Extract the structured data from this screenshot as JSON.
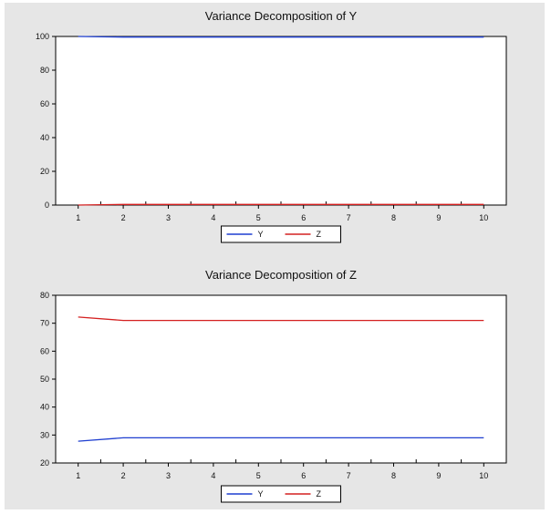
{
  "chart_data": [
    {
      "type": "line",
      "title": "Variance Decomposition of Y",
      "x": [
        1,
        2,
        3,
        4,
        5,
        6,
        7,
        8,
        9,
        10
      ],
      "xlim": [
        0.5,
        10.5
      ],
      "ylim": [
        0,
        100
      ],
      "yticks": [
        0,
        20,
        40,
        60,
        80,
        100
      ],
      "grid": false,
      "legend": "bottom-center",
      "series": [
        {
          "name": "Y",
          "color": "#1f3fd0",
          "values": [
            100,
            99.6,
            99.6,
            99.6,
            99.6,
            99.6,
            99.6,
            99.6,
            99.6,
            99.6
          ]
        },
        {
          "name": "Z",
          "color": "#d42020",
          "values": [
            0,
            0.4,
            0.4,
            0.4,
            0.4,
            0.4,
            0.4,
            0.4,
            0.4,
            0.4
          ]
        }
      ]
    },
    {
      "type": "line",
      "title": "Variance Decomposition of Z",
      "x": [
        1,
        2,
        3,
        4,
        5,
        6,
        7,
        8,
        9,
        10
      ],
      "xlim": [
        0.5,
        10.5
      ],
      "ylim": [
        20,
        80
      ],
      "yticks": [
        20,
        30,
        40,
        50,
        60,
        70,
        80
      ],
      "grid": false,
      "legend": "bottom-center",
      "series": [
        {
          "name": "Y",
          "color": "#1f3fd0",
          "values": [
            27.8,
            29.0,
            29.0,
            29.0,
            29.0,
            29.0,
            29.0,
            29.0,
            29.0,
            29.0
          ]
        },
        {
          "name": "Z",
          "color": "#d42020",
          "values": [
            72.2,
            71.0,
            71.0,
            71.0,
            71.0,
            71.0,
            71.0,
            71.0,
            71.0,
            71.0
          ]
        }
      ]
    }
  ]
}
